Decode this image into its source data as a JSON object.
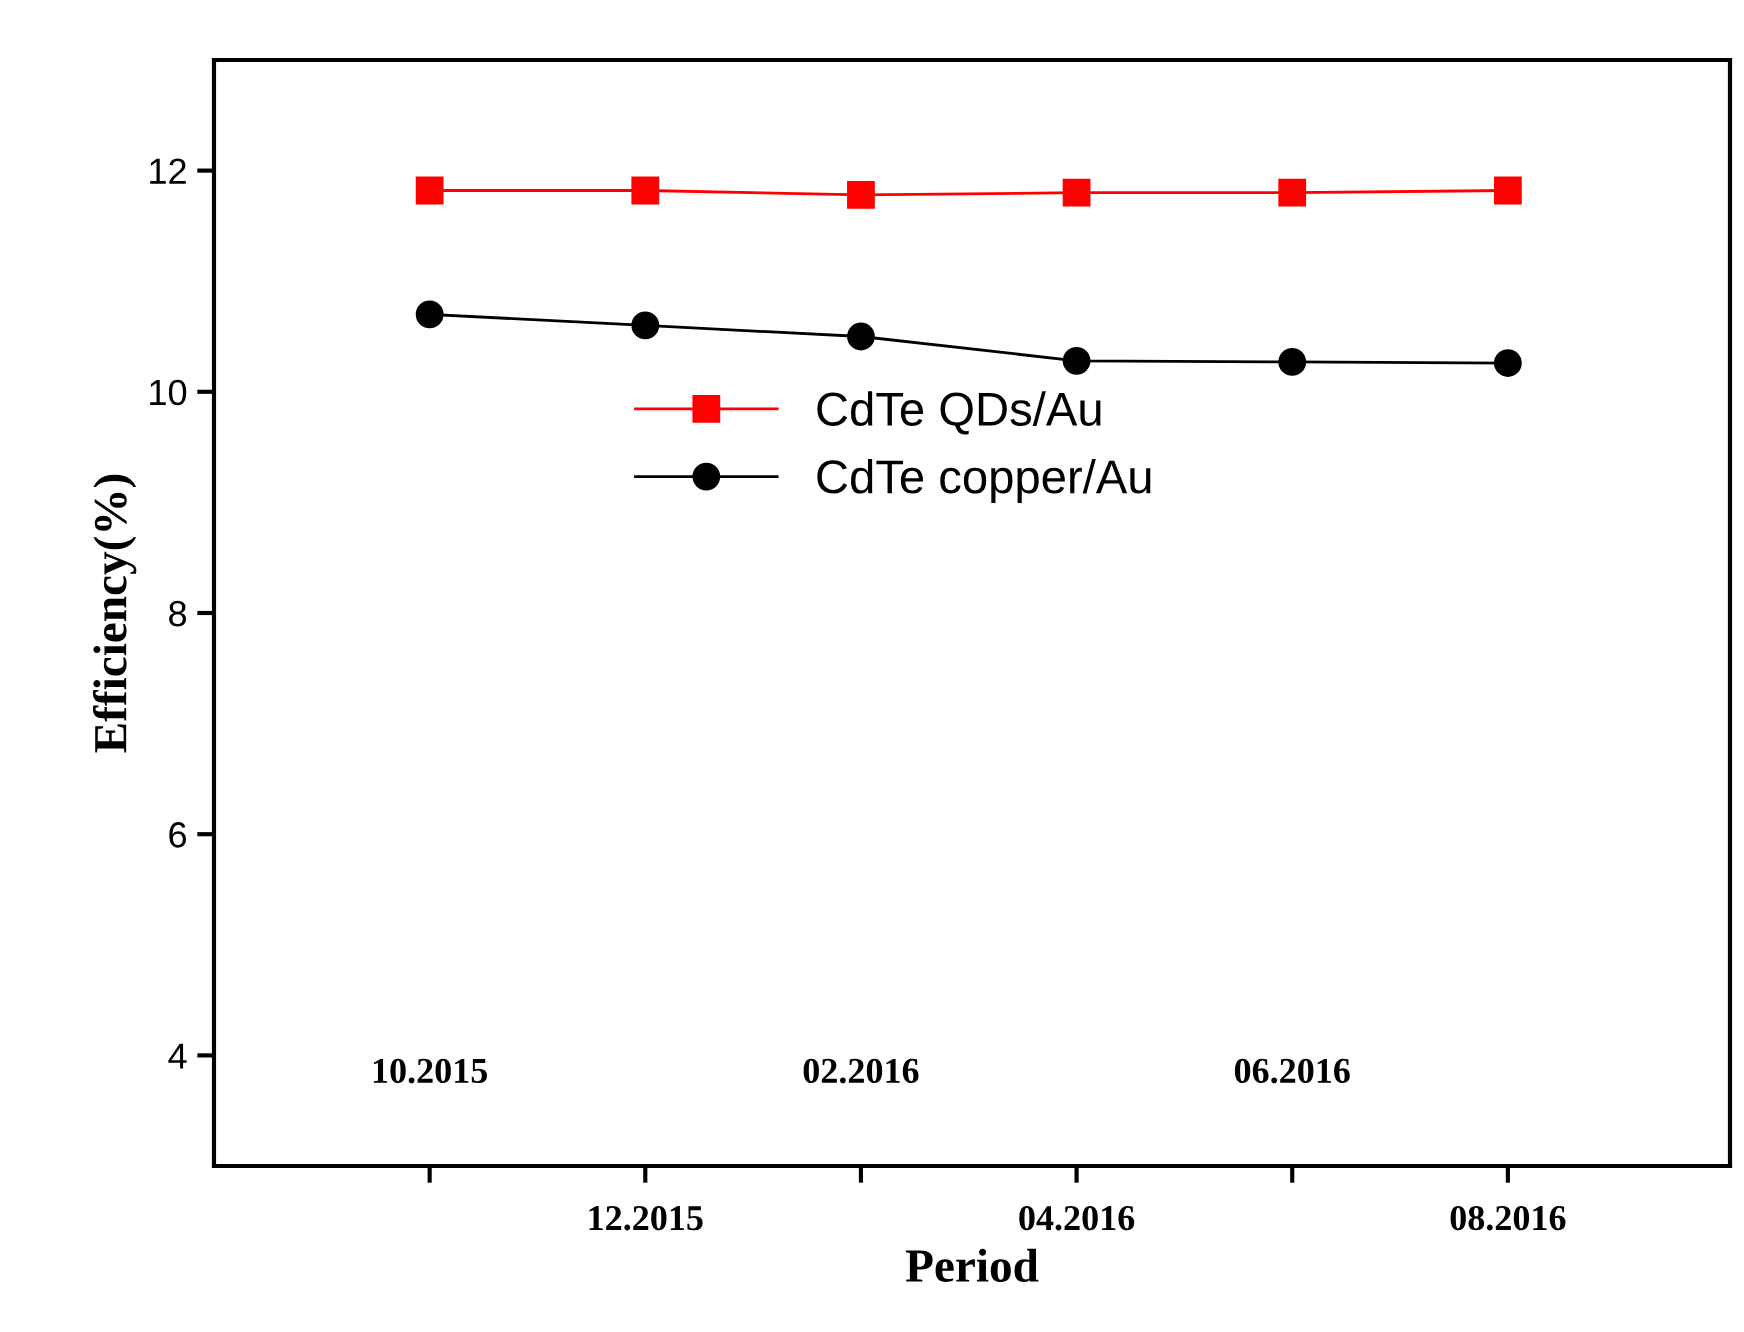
{
  "chart_data": {
    "type": "line",
    "xlabel": "Period",
    "ylabel": "Efficiency(%)",
    "categories": [
      "10.2015",
      "12.2015",
      "02.2016",
      "04.2016",
      "06.2016",
      "08.2016"
    ],
    "series": [
      {
        "name": "CdTe QDs/Au",
        "color": "#ff0000",
        "values": [
          11.82,
          11.82,
          11.78,
          11.8,
          11.8,
          11.82
        ],
        "marker": "square"
      },
      {
        "name": "CdTe copper/Au",
        "color": "#000000",
        "values": [
          10.7,
          10.6,
          10.5,
          10.28,
          10.27,
          10.26
        ],
        "marker": "circle"
      }
    ],
    "ylim": [
      3,
      13
    ],
    "yticks": [
      4,
      6,
      8,
      10,
      12
    ],
    "legend": "center left",
    "grid": false,
    "line_style": "solid"
  }
}
